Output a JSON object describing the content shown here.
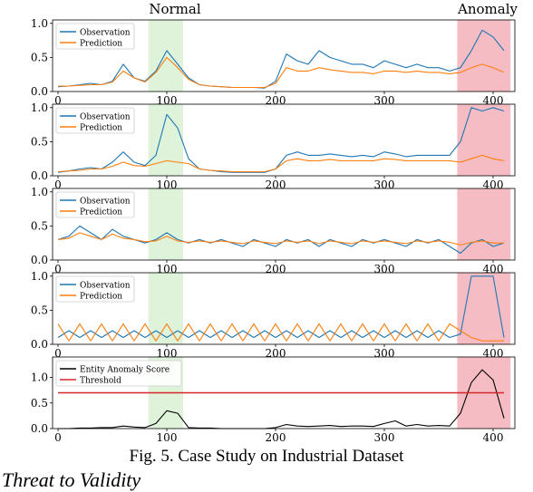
{
  "region_labels": {
    "normal": "Normal",
    "anomaly": "Anomaly"
  },
  "caption": "Fig. 5.  Case Study on Industrial Dataset",
  "section_heading": "Threat to Validity",
  "colors": {
    "observation": "#1f77b4",
    "prediction": "#ff7f0e",
    "normal_region": "#d9f0d3",
    "anomaly_region": "#f4b6bc",
    "anomaly_score": "#000000",
    "threshold": "#d62728",
    "axis": "#000000"
  },
  "chart_data": [
    {
      "type": "line",
      "xlim": [
        -5,
        420
      ],
      "ylim": [
        0,
        1.05
      ],
      "xticks": [
        0,
        100,
        200,
        300,
        400
      ],
      "yticks": [
        0.0,
        0.5,
        1.0
      ],
      "shaded_regions": {
        "normal": [
          83,
          115
        ],
        "anomaly": [
          367,
          416
        ]
      },
      "legend": {
        "placement": "top-left",
        "entries": [
          "Observation",
          "Prediction"
        ]
      },
      "series": [
        {
          "name": "Observation",
          "x_step": 10,
          "values": [
            0.07,
            0.08,
            0.1,
            0.12,
            0.1,
            0.15,
            0.4,
            0.2,
            0.15,
            0.3,
            0.6,
            0.4,
            0.2,
            0.1,
            0.08,
            0.07,
            0.06,
            0.06,
            0.06,
            0.05,
            0.15,
            0.55,
            0.45,
            0.4,
            0.6,
            0.5,
            0.45,
            0.4,
            0.4,
            0.35,
            0.45,
            0.4,
            0.35,
            0.4,
            0.35,
            0.35,
            0.3,
            0.35,
            0.6,
            0.9,
            0.8,
            0.6
          ]
        },
        {
          "name": "Prediction",
          "x_step": 10,
          "values": [
            0.08,
            0.08,
            0.09,
            0.1,
            0.1,
            0.14,
            0.3,
            0.2,
            0.14,
            0.28,
            0.5,
            0.35,
            0.18,
            0.1,
            0.08,
            0.07,
            0.06,
            0.06,
            0.06,
            0.06,
            0.12,
            0.35,
            0.3,
            0.3,
            0.35,
            0.32,
            0.3,
            0.28,
            0.28,
            0.26,
            0.3,
            0.3,
            0.28,
            0.3,
            0.28,
            0.28,
            0.26,
            0.28,
            0.35,
            0.4,
            0.35,
            0.28
          ]
        }
      ]
    },
    {
      "type": "line",
      "xlim": [
        -5,
        420
      ],
      "ylim": [
        0,
        1.05
      ],
      "xticks": [
        0,
        100,
        200,
        300,
        400
      ],
      "yticks": [
        0.0,
        0.5,
        1.0
      ],
      "shaded_regions": {
        "normal": [
          83,
          115
        ],
        "anomaly": [
          367,
          416
        ]
      },
      "legend": {
        "placement": "top-left",
        "entries": [
          "Observation",
          "Prediction"
        ]
      },
      "series": [
        {
          "name": "Observation",
          "x_step": 10,
          "values": [
            0.05,
            0.07,
            0.1,
            0.12,
            0.1,
            0.2,
            0.35,
            0.2,
            0.15,
            0.3,
            0.9,
            0.7,
            0.25,
            0.1,
            0.08,
            0.06,
            0.05,
            0.05,
            0.05,
            0.05,
            0.1,
            0.3,
            0.35,
            0.3,
            0.3,
            0.32,
            0.3,
            0.28,
            0.3,
            0.28,
            0.35,
            0.32,
            0.28,
            0.3,
            0.3,
            0.3,
            0.3,
            0.5,
            1.0,
            0.95,
            1.0,
            0.95
          ]
        },
        {
          "name": "Prediction",
          "x_step": 10,
          "values": [
            0.06,
            0.07,
            0.08,
            0.1,
            0.1,
            0.14,
            0.2,
            0.15,
            0.14,
            0.18,
            0.22,
            0.2,
            0.18,
            0.1,
            0.08,
            0.07,
            0.06,
            0.06,
            0.06,
            0.06,
            0.1,
            0.22,
            0.25,
            0.22,
            0.22,
            0.24,
            0.22,
            0.22,
            0.22,
            0.22,
            0.25,
            0.24,
            0.22,
            0.22,
            0.22,
            0.22,
            0.22,
            0.2,
            0.25,
            0.3,
            0.25,
            0.22
          ]
        }
      ]
    },
    {
      "type": "line",
      "xlim": [
        -5,
        420
      ],
      "ylim": [
        0,
        1.05
      ],
      "xticks": [
        0,
        100,
        200,
        300,
        400
      ],
      "yticks": [
        0.0,
        0.5,
        1.0
      ],
      "shaded_regions": {
        "normal": [
          83,
          115
        ],
        "anomaly": [
          367,
          416
        ]
      },
      "legend": {
        "placement": "top-left",
        "entries": [
          "Observation",
          "Prediction"
        ]
      },
      "series": [
        {
          "name": "Observation",
          "x_step": 10,
          "values": [
            0.3,
            0.35,
            0.5,
            0.4,
            0.3,
            0.45,
            0.35,
            0.3,
            0.25,
            0.3,
            0.4,
            0.3,
            0.25,
            0.3,
            0.25,
            0.3,
            0.25,
            0.2,
            0.3,
            0.25,
            0.2,
            0.3,
            0.25,
            0.3,
            0.2,
            0.3,
            0.25,
            0.2,
            0.3,
            0.25,
            0.3,
            0.25,
            0.2,
            0.3,
            0.25,
            0.3,
            0.2,
            0.1,
            0.25,
            0.3,
            0.2,
            0.25
          ]
        },
        {
          "name": "Prediction",
          "x_step": 10,
          "values": [
            0.3,
            0.32,
            0.4,
            0.35,
            0.3,
            0.38,
            0.32,
            0.3,
            0.27,
            0.28,
            0.35,
            0.28,
            0.26,
            0.28,
            0.26,
            0.28,
            0.26,
            0.24,
            0.28,
            0.26,
            0.24,
            0.28,
            0.26,
            0.28,
            0.24,
            0.28,
            0.26,
            0.24,
            0.28,
            0.26,
            0.28,
            0.26,
            0.24,
            0.28,
            0.26,
            0.28,
            0.26,
            0.22,
            0.26,
            0.28,
            0.25,
            0.25
          ]
        }
      ]
    },
    {
      "type": "line",
      "xlim": [
        -5,
        420
      ],
      "ylim": [
        0,
        1.05
      ],
      "xticks": [
        0,
        100,
        200,
        300,
        400
      ],
      "yticks": [
        0.0,
        0.5,
        1.0
      ],
      "shaded_regions": {
        "normal": [
          83,
          115
        ],
        "anomaly": [
          367,
          416
        ]
      },
      "legend": {
        "placement": "top-left",
        "entries": [
          "Observation",
          "Prediction"
        ]
      },
      "series": [
        {
          "name": "Observation",
          "x_step": 10,
          "values": [
            0.1,
            0.2,
            0.1,
            0.2,
            0.1,
            0.2,
            0.1,
            0.2,
            0.1,
            0.2,
            0.1,
            0.2,
            0.1,
            0.2,
            0.1,
            0.2,
            0.1,
            0.2,
            0.1,
            0.2,
            0.1,
            0.2,
            0.1,
            0.2,
            0.1,
            0.2,
            0.1,
            0.2,
            0.1,
            0.2,
            0.1,
            0.2,
            0.1,
            0.2,
            0.1,
            0.2,
            0.1,
            0.15,
            1.0,
            1.0,
            1.0,
            0.1
          ]
        },
        {
          "name": "Prediction",
          "x_step": 10,
          "values": [
            0.3,
            0.05,
            0.3,
            0.05,
            0.3,
            0.05,
            0.3,
            0.05,
            0.3,
            0.05,
            0.3,
            0.05,
            0.3,
            0.05,
            0.3,
            0.05,
            0.3,
            0.05,
            0.3,
            0.05,
            0.3,
            0.05,
            0.3,
            0.05,
            0.3,
            0.05,
            0.3,
            0.05,
            0.3,
            0.05,
            0.3,
            0.05,
            0.3,
            0.05,
            0.3,
            0.05,
            0.3,
            0.2,
            0.1,
            0.05,
            0.05,
            0.05
          ]
        }
      ]
    },
    {
      "type": "line",
      "xlim": [
        -5,
        420
      ],
      "ylim": [
        0,
        1.4
      ],
      "xticks": [
        0,
        100,
        200,
        300,
        400
      ],
      "yticks": [
        0.0,
        0.5,
        1.0
      ],
      "shaded_regions": {
        "normal": [
          83,
          115
        ],
        "anomaly": [
          367,
          416
        ]
      },
      "legend": {
        "placement": "top-left",
        "entries": [
          "Entity Anomaly Score",
          "Threshold"
        ]
      },
      "threshold": 0.7,
      "series": [
        {
          "name": "Entity Anomaly Score",
          "x_step": 10,
          "values": [
            0.0,
            0.0,
            0.01,
            0.01,
            0.02,
            0.02,
            0.05,
            0.03,
            0.02,
            0.1,
            0.35,
            0.3,
            0.02,
            0.01,
            0.01,
            0.0,
            0.0,
            0.0,
            0.0,
            0.0,
            0.02,
            0.08,
            0.05,
            0.04,
            0.05,
            0.06,
            0.04,
            0.05,
            0.05,
            0.04,
            0.1,
            0.15,
            0.05,
            0.08,
            0.05,
            0.06,
            0.05,
            0.3,
            0.9,
            1.15,
            0.95,
            0.2
          ]
        },
        {
          "name": "Threshold",
          "x_step": 10,
          "values": [
            0.7,
            0.7,
            0.7,
            0.7,
            0.7,
            0.7,
            0.7,
            0.7,
            0.7,
            0.7,
            0.7,
            0.7,
            0.7,
            0.7,
            0.7,
            0.7,
            0.7,
            0.7,
            0.7,
            0.7,
            0.7,
            0.7,
            0.7,
            0.7,
            0.7,
            0.7,
            0.7,
            0.7,
            0.7,
            0.7,
            0.7,
            0.7,
            0.7,
            0.7,
            0.7,
            0.7,
            0.7,
            0.7,
            0.7,
            0.7,
            0.7,
            0.7
          ]
        }
      ]
    }
  ]
}
